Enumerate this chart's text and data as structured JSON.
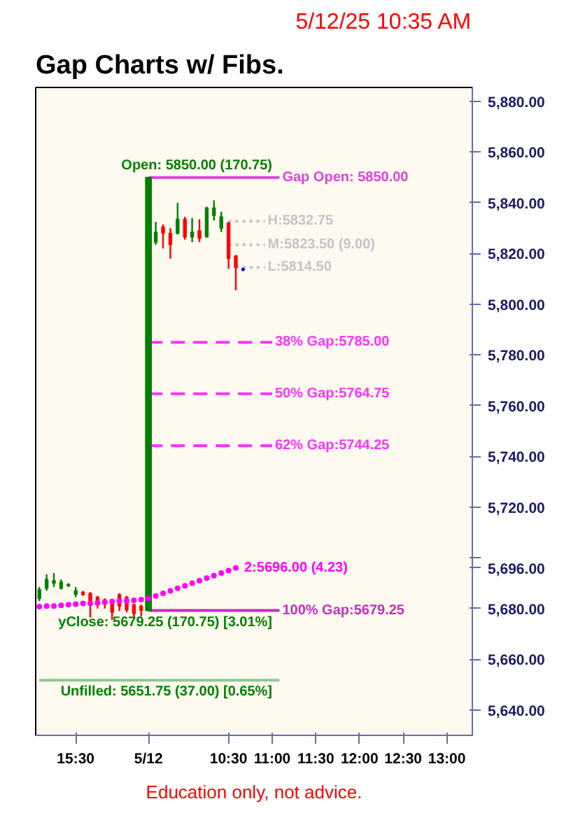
{
  "chart_data": {
    "type": "candlestick",
    "title": "Gap Charts w/ Fibs.",
    "subtitle": "5/12/25 10:35 AM",
    "categories": [
      null,
      null,
      null,
      null,
      null,
      "15:30",
      null,
      null,
      null,
      null,
      null,
      null,
      null,
      null,
      null,
      "5/12",
      null,
      null,
      null,
      null,
      null,
      null,
      null,
      null,
      null,
      null,
      "10:30",
      null,
      null,
      null,
      null,
      null,
      "11:00",
      null,
      null,
      null,
      null,
      null,
      "11:30",
      null,
      null,
      null,
      null,
      null,
      "12:00",
      null,
      null,
      null,
      null,
      null,
      "12:30",
      null,
      null,
      null,
      null,
      null,
      "13:00",
      null,
      null,
      null
    ],
    "ohlc": [
      [
        5684,
        5688.5,
        5683,
        5687.5
      ],
      [
        5688,
        5693.5,
        5687,
        5691.5
      ],
      [
        5690,
        5694,
        5688.5,
        5691
      ],
      [
        5688,
        5691.5,
        5687.5,
        5690.5
      ],
      [
        5689,
        5690,
        5688.5,
        5689.5
      ],
      [
        5685.5,
        5688.5,
        5684.5,
        5687
      ],
      [
        5686.5,
        5687,
        5685,
        5685.5
      ],
      [
        5686,
        5686.5,
        5676.5,
        5683
      ],
      [
        5684.5,
        5685,
        5680,
        5681.5
      ],
      [
        5683.5,
        5684,
        5680,
        5682.5
      ],
      [
        5683.5,
        5683.5,
        5675.5,
        5678.5
      ],
      [
        5685.5,
        5686,
        5679,
        5681
      ],
      [
        5684.5,
        5685,
        5678.5,
        5679.5
      ],
      [
        5681.5,
        5682,
        5676,
        5678
      ],
      [
        5681,
        5681.5,
        5677,
        5679.25
      ],
      null,
      [
        5824.5,
        5832.5,
        5823.5,
        5828.5
      ],
      [
        5830.5,
        5831.5,
        5822,
        5828
      ],
      [
        5828,
        5830,
        5818,
        5823.5
      ],
      [
        5828,
        5840,
        5827.5,
        5833.5
      ],
      [
        5833.5,
        5834.5,
        5825.5,
        5826.5
      ],
      [
        5826.5,
        5834,
        5824.5,
        5828.5
      ],
      [
        5829,
        5833.5,
        5824.5,
        5826
      ],
      [
        5826.5,
        5838.5,
        5826.5,
        5838
      ],
      [
        5835,
        5841,
        5833,
        5838
      ],
      [
        5830,
        5836.5,
        5828.5,
        5834.5
      ],
      [
        5832,
        5832.5,
        5814,
        5818
      ],
      [
        5819,
        5819.5,
        5805.5,
        5814.5
      ],
      [
        5814,
        5814.5,
        5813,
        5813.5
      ],
      null,
      null,
      null,
      null,
      null,
      null,
      null,
      null,
      null,
      null,
      null,
      null,
      null,
      null,
      null,
      null,
      null,
      null,
      null,
      null,
      null,
      null,
      null,
      null,
      null,
      null,
      null,
      null,
      null,
      null,
      null
    ],
    "colors": [
      "#008000",
      "#008000",
      "#008000",
      "#008000",
      "#008000",
      "#008000",
      "#ff0000",
      "#ff0000",
      "#ff0000",
      "#ff0000",
      "#ff0000",
      "#ff0000",
      "#ff0000",
      "#ff0000",
      "#ff0000",
      null,
      "#008000",
      "#ff0000",
      "#ff0000",
      "#008000",
      "#ff0000",
      "#008000",
      "#ff0000",
      "#008000",
      "#008000",
      "#008000",
      "#ff0000",
      "#ff0000",
      "#0000ff",
      null,
      null,
      null,
      null,
      null,
      null,
      null,
      null,
      null,
      null,
      null,
      null,
      null,
      null,
      null,
      null,
      null,
      null,
      null,
      null,
      null,
      null,
      null,
      null,
      null,
      null,
      null,
      null,
      null,
      null,
      null
    ],
    "series": [
      {
        "type": "line",
        "color": "#90c890",
        "line_style": "solid",
        "values": [
          5651.75,
          5651.75,
          5651.75,
          5651.75,
          5651.75,
          5651.75,
          5651.75,
          5651.75,
          5651.75,
          5651.75,
          5651.75,
          5651.75,
          5651.75,
          5651.75,
          5651.75,
          5651.75,
          5651.75,
          5651.75,
          5651.75,
          5651.75,
          5651.75,
          5651.75,
          5651.75,
          5651.75,
          5651.75,
          5651.75,
          5651.75,
          5651.75,
          5651.75,
          5651.75,
          5651.75,
          5651.75,
          5651.75,
          5651.75,
          null,
          null,
          null,
          null,
          null,
          null,
          null,
          null,
          null,
          null,
          null,
          null,
          null,
          null,
          null,
          null,
          null,
          null,
          null,
          null,
          null,
          null,
          null,
          null,
          null,
          null
        ]
      },
      {
        "type": "line",
        "name": "Gap Open: 5850.00",
        "color": "#e040e0",
        "line_style": "solid",
        "values": [
          null,
          null,
          null,
          null,
          null,
          null,
          null,
          null,
          null,
          null,
          null,
          null,
          null,
          null,
          null,
          5850,
          5850,
          5850,
          5850,
          5850,
          5850,
          5850,
          5850,
          5850,
          5850,
          5850,
          5850,
          5850,
          5850,
          5850,
          5850,
          5850,
          5850,
          5850,
          null,
          null,
          null,
          null,
          null,
          null,
          null,
          null,
          null,
          null,
          null,
          null,
          null,
          null,
          null,
          null,
          null,
          null,
          null,
          null,
          null,
          null,
          null,
          null,
          null,
          null
        ]
      },
      {
        "type": "line",
        "name": "H:5832.75",
        "color": "#c4c4c4",
        "line_style": "dotted",
        "values": [
          null,
          null,
          null,
          null,
          null,
          null,
          null,
          null,
          null,
          null,
          null,
          null,
          null,
          null,
          null,
          null,
          null,
          null,
          null,
          null,
          null,
          null,
          null,
          null,
          null,
          null,
          5832.75,
          5832.75,
          5832.75,
          5832.75,
          5832.75,
          5832.75,
          null,
          null,
          null,
          null,
          null,
          null,
          null,
          null,
          null,
          null,
          null,
          null,
          null,
          null,
          null,
          null,
          null,
          null,
          null,
          null,
          null,
          null,
          null,
          null,
          null,
          null,
          null,
          null
        ]
      },
      {
        "type": "line",
        "name": "M:5823.50 (9.00)",
        "color": "#c4c4c4",
        "line_style": "dotted",
        "values": [
          null,
          null,
          null,
          null,
          null,
          null,
          null,
          null,
          null,
          null,
          null,
          null,
          null,
          null,
          null,
          null,
          null,
          null,
          null,
          null,
          null,
          null,
          null,
          null,
          null,
          null,
          5823.5,
          5823.5,
          5823.5,
          5823.5,
          5823.5,
          5823.5,
          null,
          null,
          null,
          null,
          null,
          null,
          null,
          null,
          null,
          null,
          null,
          null,
          null,
          null,
          null,
          null,
          null,
          null,
          null,
          null,
          null,
          null,
          null,
          null,
          null,
          null,
          null,
          null
        ]
      },
      {
        "type": "line",
        "name": "L:5814.50",
        "color": "#c4c4c4",
        "line_style": "dotted",
        "values": [
          null,
          null,
          null,
          null,
          null,
          null,
          null,
          null,
          null,
          null,
          null,
          null,
          null,
          null,
          null,
          null,
          null,
          null,
          null,
          null,
          null,
          null,
          null,
          null,
          null,
          null,
          null,
          5814.5,
          5814.5,
          5814.5,
          5814.5,
          5814.5,
          null,
          null,
          null,
          null,
          null,
          null,
          null,
          null,
          null,
          null,
          null,
          null,
          null,
          null,
          null,
          null,
          null,
          null,
          null,
          null,
          null,
          null,
          null,
          null,
          null,
          null,
          null,
          null
        ]
      },
      {
        "type": "line",
        "name": "38% Gap:5785.00",
        "color": "#ff33ff",
        "line_style": "dashed",
        "values": [
          null,
          null,
          null,
          null,
          null,
          null,
          null,
          null,
          null,
          null,
          null,
          null,
          null,
          null,
          null,
          5785,
          5785,
          5785,
          5785,
          5785,
          5785,
          5785,
          5785,
          5785,
          5785,
          5785,
          5785,
          5785,
          5785,
          5785,
          5785,
          5785,
          5785,
          null,
          null,
          null,
          null,
          null,
          null,
          null,
          null,
          null,
          null,
          null,
          null,
          null,
          null,
          null,
          null,
          null,
          null,
          null,
          null,
          null,
          null,
          null,
          null,
          null,
          null,
          null
        ]
      },
      {
        "type": "line",
        "name": "50% Gap:5764.75",
        "color": "#ff33ff",
        "line_style": "dashed",
        "values": [
          null,
          null,
          null,
          null,
          null,
          null,
          null,
          null,
          null,
          null,
          null,
          null,
          null,
          null,
          null,
          5764.75,
          5764.75,
          5764.75,
          5764.75,
          5764.75,
          5764.75,
          5764.75,
          5764.75,
          5764.75,
          5764.75,
          5764.75,
          5764.75,
          5764.75,
          5764.75,
          5764.75,
          5764.75,
          5764.75,
          5764.75,
          null,
          null,
          null,
          null,
          null,
          null,
          null,
          null,
          null,
          null,
          null,
          null,
          null,
          null,
          null,
          null,
          null,
          null,
          null,
          null,
          null,
          null,
          null,
          null,
          null,
          null,
          null
        ]
      },
      {
        "type": "line",
        "name": "62% Gap:5744.25",
        "color": "#ff33ff",
        "line_style": "dashed",
        "values": [
          null,
          null,
          null,
          null,
          null,
          null,
          null,
          null,
          null,
          null,
          null,
          null,
          null,
          null,
          null,
          5744.25,
          5744.25,
          5744.25,
          5744.25,
          5744.25,
          5744.25,
          5744.25,
          5744.25,
          5744.25,
          5744.25,
          5744.25,
          5744.25,
          5744.25,
          5744.25,
          5744.25,
          5744.25,
          5744.25,
          5744.25,
          null,
          null,
          null,
          null,
          null,
          null,
          null,
          null,
          null,
          null,
          null,
          null,
          null,
          null,
          null,
          null,
          null,
          null,
          null,
          null,
          null,
          null,
          null,
          null,
          null,
          null,
          null
        ]
      },
      {
        "type": "line",
        "name": "100% Gap:5679.25",
        "color": "#c030c0",
        "line_style": "solid",
        "values": [
          null,
          null,
          null,
          null,
          null,
          null,
          null,
          null,
          null,
          null,
          null,
          null,
          null,
          null,
          null,
          5679.25,
          5679.25,
          5679.25,
          5679.25,
          5679.25,
          5679.25,
          5679.25,
          5679.25,
          5679.25,
          5679.25,
          5679.25,
          5679.25,
          5679.25,
          5679.25,
          5679.25,
          5679.25,
          5679.25,
          5679.25,
          5679.25,
          null,
          null,
          null,
          null,
          null,
          null,
          null,
          null,
          null,
          null,
          null,
          null,
          null,
          null,
          null,
          null,
          null,
          null,
          null,
          null,
          null,
          null,
          null,
          null,
          null,
          null
        ]
      },
      {
        "type": "scatter",
        "name": "2:5696.00 (4.23)",
        "marker": "circle",
        "color": "#ff00ff",
        "values": [
          5680.75,
          5681,
          5681,
          5681.25,
          5681.5,
          5681.75,
          5682,
          5682,
          5682.25,
          5682.5,
          5682.75,
          5683,
          5683,
          5683.25,
          5683.5,
          5684,
          5685,
          5686,
          5687,
          5688,
          5689,
          5690,
          5691,
          5692,
          5693,
          5694,
          5695,
          5696,
          null,
          null,
          null,
          null,
          null,
          null,
          null,
          null,
          null,
          null,
          null,
          null,
          null,
          null,
          null,
          null,
          null,
          null,
          null,
          null,
          null,
          null,
          null,
          null,
          null,
          null,
          null,
          null,
          null,
          null,
          null,
          null
        ]
      },
      {
        "type": "bar",
        "color": "#008000",
        "base": [
          null,
          null,
          null,
          null,
          null,
          null,
          null,
          null,
          null,
          null,
          null,
          null,
          null,
          null,
          null,
          5679.25,
          null,
          null,
          null,
          null,
          null,
          null,
          null,
          null,
          null,
          null,
          null,
          null,
          null,
          null,
          null,
          null,
          null,
          null,
          null,
          null,
          null,
          null,
          null,
          null,
          null,
          null,
          null,
          null,
          null,
          null,
          null,
          null,
          null,
          null,
          null,
          null,
          null,
          null,
          null,
          null,
          null,
          null,
          null,
          null
        ],
        "values": [
          null,
          null,
          null,
          null,
          null,
          null,
          null,
          null,
          null,
          null,
          null,
          null,
          null,
          null,
          null,
          170.75,
          null,
          null,
          null,
          null,
          null,
          null,
          null,
          null,
          null,
          null,
          null,
          null,
          null,
          null,
          null,
          null,
          null,
          null,
          null,
          null,
          null,
          null,
          null,
          null,
          null,
          null,
          null,
          null,
          null,
          null,
          null,
          null,
          null,
          null,
          null,
          null,
          null,
          null,
          null,
          null,
          null,
          null,
          null,
          null
        ]
      }
    ],
    "annotations": [
      {
        "text": "Open: 5850.00 (170.75)",
        "x": "11:00",
        "y": 5850
      },
      {
        "text": "yClose: 5679.25 (170.75) [3.01%]",
        "x": "11:00",
        "y": 5679.25
      },
      {
        "text": "Unfilled: 5651.75 (37.00) [0.65%]",
        "x": "11:00",
        "y": 5651.75
      },
      "Education only, not advice."
    ],
    "ylim": [
      5630,
      5885.5
    ],
    "yticks": [
      {
        "value": 5640,
        "label": "5,640.00"
      },
      {
        "value": 5660,
        "label": "5,660.00"
      },
      {
        "value": 5680,
        "label": "5,680.00"
      },
      {
        "value": 5696,
        "label": "5,696.00"
      },
      {
        "value": 5700,
        "label": null
      },
      {
        "value": 5720,
        "label": "5,720.00"
      },
      {
        "value": 5740,
        "label": "5,740.00"
      },
      {
        "value": 5760,
        "label": "5,760.00"
      },
      {
        "value": 5780,
        "label": "5,780.00"
      },
      {
        "value": 5800,
        "label": "5,800.00"
      },
      {
        "value": 5820,
        "label": "5,820.00"
      },
      {
        "value": 5840,
        "label": "5,840.00"
      },
      {
        "value": 5860,
        "label": "5,860.00"
      },
      {
        "value": 5880,
        "label": "5,880.00"
      }
    ],
    "grid": false
  }
}
